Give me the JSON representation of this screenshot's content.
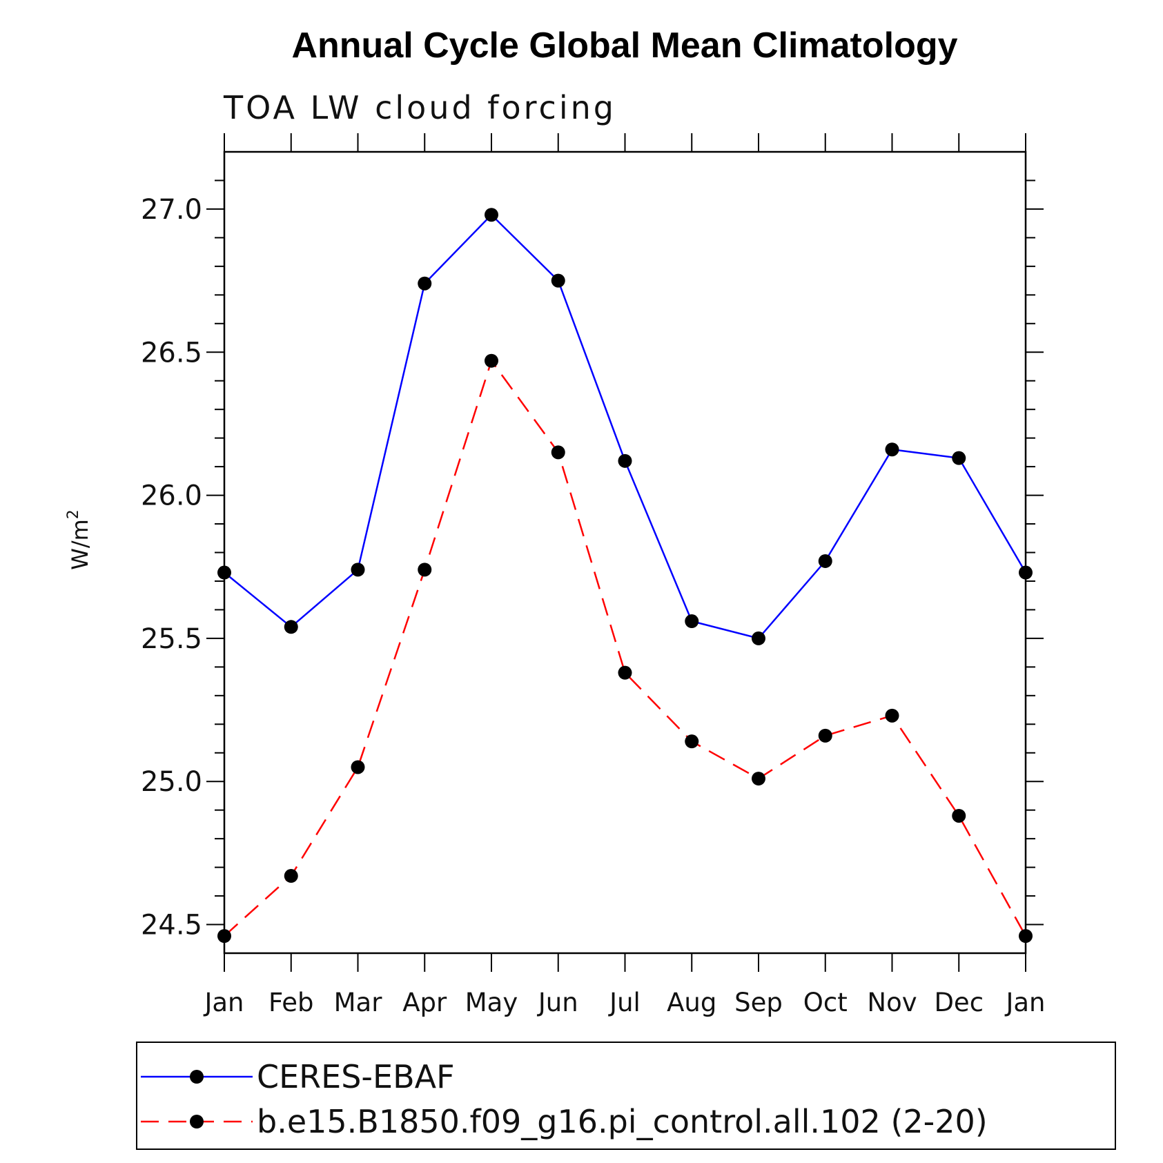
{
  "chart_data": {
    "type": "line",
    "title": "Annual Cycle Global Mean Climatology",
    "subtitle": "TOA LW cloud forcing",
    "ylabel": "W/m",
    "ylabel_sup": "2",
    "categories": [
      "Jan",
      "Feb",
      "Mar",
      "Apr",
      "May",
      "Jun",
      "Jul",
      "Aug",
      "Sep",
      "Oct",
      "Nov",
      "Dec",
      "Jan"
    ],
    "ylim": [
      24.4,
      27.2
    ],
    "yticks": [
      24.5,
      25.0,
      25.5,
      26.0,
      26.5,
      27.0
    ],
    "ytick_labels": [
      "24.5",
      "25.0",
      "25.5",
      "26.0",
      "26.5",
      "27.0"
    ],
    "grid": false,
    "legend_position": "bottom",
    "series": [
      {
        "name": "CERES-EBAF",
        "color": "#0000ff",
        "dash": "solid",
        "marker": "filled-circle",
        "values": [
          25.73,
          25.54,
          25.74,
          26.74,
          26.98,
          26.75,
          26.12,
          25.56,
          25.5,
          25.77,
          26.16,
          26.13,
          25.73
        ]
      },
      {
        "name": "b.e15.B1850.f09_g16.pi_control.all.102 (2-20)",
        "color": "#ff0000",
        "dash": "dashed",
        "marker": "filled-circle",
        "values": [
          24.46,
          24.67,
          25.05,
          25.74,
          26.47,
          26.15,
          25.38,
          25.14,
          25.01,
          25.16,
          25.23,
          24.88,
          24.46
        ]
      }
    ]
  }
}
